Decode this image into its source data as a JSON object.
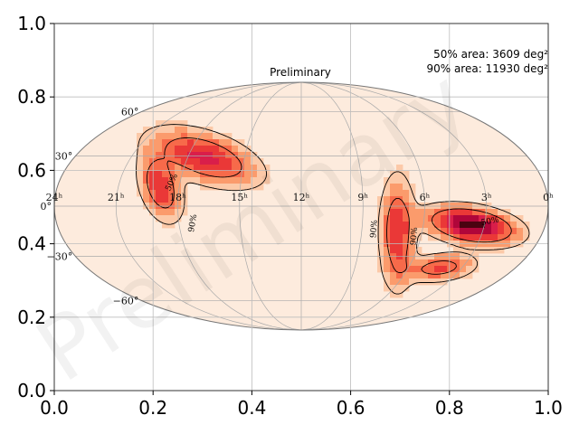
{
  "chart_data": {
    "type": "heatmap",
    "title": "Preliminary",
    "watermark": "Preliminary",
    "annotations": {
      "area50": "50% area: 3609 deg²",
      "area90": "90% area: 11930 deg²"
    },
    "contour_labels": [
      "50%",
      "90%",
      "90%",
      "90%",
      "50%"
    ],
    "xlim": [
      0.0,
      1.0
    ],
    "ylim": [
      0.0,
      1.0
    ],
    "xticks": [
      {
        "value": 0.0,
        "label": "0.0"
      },
      {
        "value": 0.2,
        "label": "0.2"
      },
      {
        "value": 0.4,
        "label": "0.4"
      },
      {
        "value": 0.6,
        "label": "0.6"
      },
      {
        "value": 0.8,
        "label": "0.8"
      },
      {
        "value": 1.0,
        "label": "1.0"
      }
    ],
    "yticks": [
      {
        "value": 0.0,
        "label": "0.0"
      },
      {
        "value": 0.2,
        "label": "0.2"
      },
      {
        "value": 0.4,
        "label": "0.4"
      },
      {
        "value": 0.6,
        "label": "0.6"
      },
      {
        "value": 0.8,
        "label": "0.8"
      },
      {
        "value": 1.0,
        "label": "1.0"
      }
    ],
    "grid": true,
    "projection": "mollweide",
    "ra_labels": [
      {
        "hours": 24,
        "label": "24ʰ"
      },
      {
        "hours": 21,
        "label": "21ʰ"
      },
      {
        "hours": 18,
        "label": "18ʰ"
      },
      {
        "hours": 15,
        "label": "15ʰ"
      },
      {
        "hours": 12,
        "label": "12ʰ"
      },
      {
        "hours": 9,
        "label": "9ʰ"
      },
      {
        "hours": 6,
        "label": "6ʰ"
      },
      {
        "hours": 3,
        "label": "3ʰ"
      },
      {
        "hours": 0,
        "label": "0ʰ"
      }
    ],
    "dec_labels": [
      {
        "deg": 60,
        "label": "60°"
      },
      {
        "deg": 30,
        "label": "30°"
      },
      {
        "deg": 0,
        "label": "0°"
      },
      {
        "deg": -30,
        "label": "−30°"
      },
      {
        "deg": -60,
        "label": "−60°"
      }
    ],
    "colormap": [
      "#fdebdd",
      "#fcc9a8",
      "#fb9b6c",
      "#f76a4a",
      "#ea3837",
      "#d91e4a",
      "#b0063a",
      "#4a0311"
    ],
    "probability_blobs": [
      {
        "name": "west",
        "center": [
          0.305,
          0.635
        ],
        "radius": [
          0.095,
          0.05
        ],
        "angle_deg": -28,
        "peak": 0.62
      },
      {
        "name": "west-hook",
        "center": [
          0.215,
          0.555
        ],
        "radius": [
          0.032,
          0.075
        ],
        "angle_deg": 12,
        "peak": 0.55
      },
      {
        "name": "east-column",
        "center": [
          0.695,
          0.43
        ],
        "radius": [
          0.028,
          0.12
        ],
        "angle_deg": 0,
        "peak": 0.55
      },
      {
        "name": "east-lobe",
        "center": [
          0.845,
          0.45
        ],
        "radius": [
          0.075,
          0.038
        ],
        "angle_deg": -14,
        "peak": 1.0
      },
      {
        "name": "east-tail",
        "center": [
          0.78,
          0.335
        ],
        "radius": [
          0.06,
          0.03
        ],
        "angle_deg": 10,
        "peak": 0.42
      }
    ]
  }
}
